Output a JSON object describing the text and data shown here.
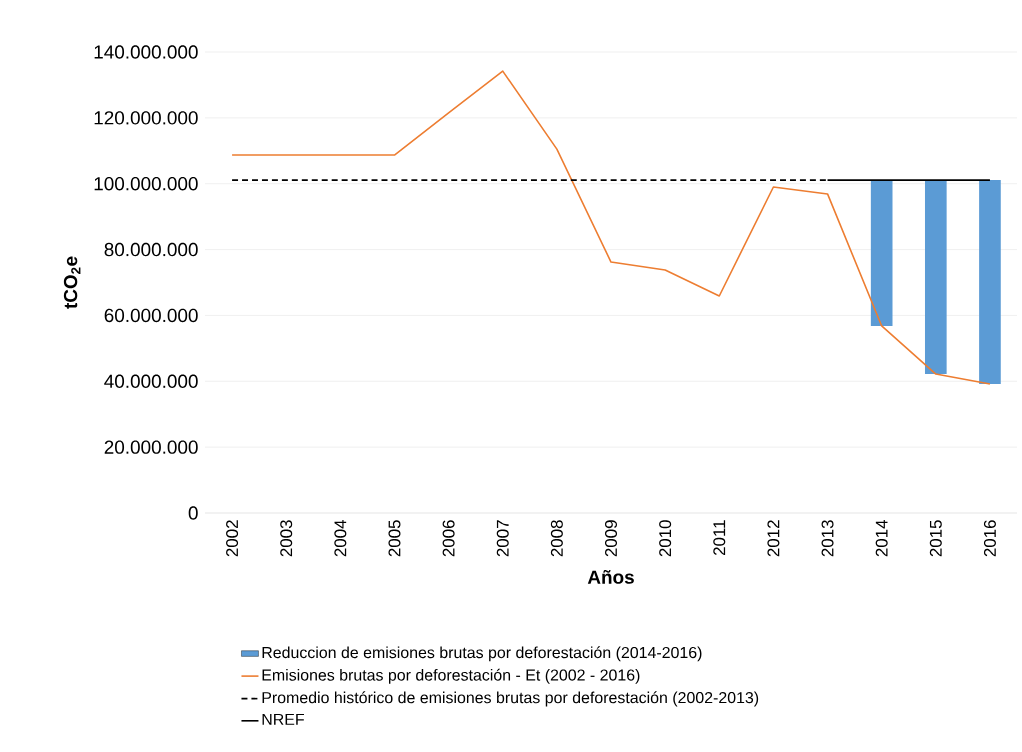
{
  "chart_data": {
    "type": "line",
    "categories": [
      "2002",
      "2003",
      "2004",
      "2005",
      "2006",
      "2007",
      "2008",
      "2009",
      "2010",
      "2011",
      "2012",
      "2013",
      "2014",
      "2015",
      "2016"
    ],
    "series": [
      {
        "name": "Reduccion de emisiones brutas por deforestación (2014-2016)",
        "type": "bar",
        "color": "#5b9bd5",
        "values": [
          null,
          null,
          null,
          null,
          null,
          null,
          null,
          null,
          null,
          null,
          null,
          null,
          44300000.0,
          58900000.0,
          61900000.0
        ],
        "base": [
          null,
          null,
          null,
          null,
          null,
          null,
          null,
          null,
          null,
          null,
          null,
          null,
          56800000.0,
          42200000.0,
          39200000.0
        ]
      },
      {
        "name": "Emisiones brutas por deforestación - Et (2002 - 2016)",
        "color": "#ed7d31",
        "line_style": "solid",
        "values": [
          108700000.0,
          108700000.0,
          108700000.0,
          108700000.0,
          121500000.0,
          134200000.0,
          110500000.0,
          76200000.0,
          73800000.0,
          65900000.0,
          99000000.0,
          96900000.0,
          56800000.0,
          42200000.0,
          39200000.0
        ]
      },
      {
        "name": "Promedio histórico de emisiones brutas por deforestación (2002-2013)",
        "type": "line",
        "color": "#000000",
        "line_style": "dashed",
        "values": [
          101100000.0,
          101100000.0,
          101100000.0,
          101100000.0,
          101100000.0,
          101100000.0,
          101100000.0,
          101100000.0,
          101100000.0,
          101100000.0,
          101100000.0,
          101100000.0,
          null,
          null,
          null
        ]
      },
      {
        "name": "NREF",
        "type": "line",
        "color": "#000000",
        "line_style": "solid",
        "values": [
          null,
          null,
          null,
          null,
          null,
          null,
          null,
          null,
          null,
          null,
          null,
          101100000.0,
          101100000.0,
          101100000.0,
          101100000.0
        ]
      }
    ],
    "xlabel": "Años",
    "ylabel": "tCO$_{2}$e",
    "ylim": [
      0,
      140000000
    ],
    "yticks": [
      0,
      {
        "value": 20000000,
        "label": "20.000.000"
      },
      {
        "value": 40000000,
        "label": "40.000.000"
      },
      {
        "value": 60000000,
        "label": "60.000.000"
      },
      {
        "value": 80000000,
        "label": "80.000.000"
      },
      {
        "value": 100000000,
        "label": "100.000.000"
      },
      {
        "value": 120000000,
        "label": "120.000.000"
      },
      {
        "value": 140000000,
        "label": "140.000.000"
      }
    ],
    "grid": "y",
    "legend": "bottom",
    "marker": "none"
  }
}
